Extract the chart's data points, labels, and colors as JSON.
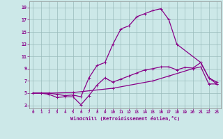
{
  "xlabel": "Windchill (Refroidissement éolien,°C)",
  "bg_color": "#cce8e8",
  "line_color": "#880088",
  "grid_color": "#99bbbb",
  "xlim": [
    -0.5,
    23.5
  ],
  "ylim": [
    2.5,
    20
  ],
  "xticks": [
    0,
    1,
    2,
    3,
    4,
    5,
    6,
    7,
    8,
    9,
    10,
    11,
    12,
    13,
    14,
    15,
    16,
    17,
    18,
    19,
    20,
    21,
    22,
    23
  ],
  "yticks": [
    3,
    5,
    7,
    9,
    11,
    13,
    15,
    17,
    19
  ],
  "curve1_x": [
    0,
    1,
    2,
    3,
    4,
    5,
    6,
    7,
    8,
    9,
    10,
    11,
    12,
    13,
    14,
    15,
    16,
    17,
    18,
    21,
    22,
    23
  ],
  "curve1_y": [
    5,
    5,
    5,
    4.8,
    4.6,
    4.7,
    4.4,
    7.5,
    9.5,
    10,
    13,
    15.5,
    16,
    17.5,
    18,
    18.5,
    18.8,
    17,
    13,
    10,
    7.5,
    6.8
  ],
  "curve2_x": [
    0,
    1,
    2,
    3,
    4,
    5,
    6,
    7,
    8,
    9,
    10,
    11,
    12,
    13,
    14,
    15,
    16,
    17,
    18,
    19,
    20,
    21,
    22,
    23
  ],
  "curve2_y": [
    5,
    5,
    4.8,
    4.3,
    4.4,
    4.4,
    3.1,
    4.6,
    6.3,
    7.5,
    6.8,
    7.3,
    7.8,
    8.3,
    8.8,
    9.0,
    9.3,
    9.3,
    8.8,
    9.2,
    9.1,
    10,
    7.5,
    6.5
  ],
  "curve3_x": [
    0,
    2,
    5,
    10,
    15,
    17,
    20,
    21,
    22,
    23
  ],
  "curve3_y": [
    5,
    5,
    5.1,
    5.8,
    7.0,
    7.8,
    9.0,
    9.3,
    6.5,
    6.5
  ],
  "linewidth": 0.9,
  "markersize": 3.0
}
